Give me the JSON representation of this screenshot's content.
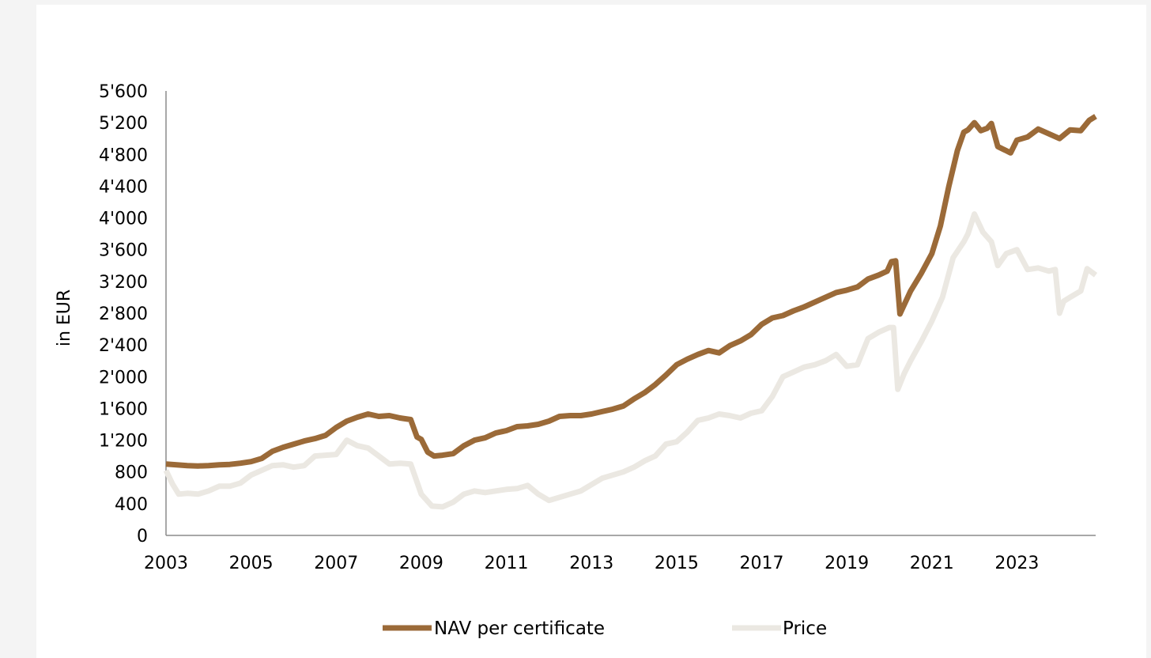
{
  "chart_data": {
    "type": "line",
    "title": "",
    "xlabel": "",
    "ylabel": "in EUR",
    "xlim": [
      2003,
      2024.85
    ],
    "ylim": [
      0,
      5600
    ],
    "xticks": [
      2003,
      2005,
      2007,
      2009,
      2011,
      2013,
      2015,
      2017,
      2019,
      2021,
      2023
    ],
    "xtick_labels": [
      "2003",
      "2005",
      "2007",
      "2009",
      "2011",
      "2013",
      "2015",
      "2017",
      "2019",
      "2021",
      "2023"
    ],
    "yticks": [
      0,
      400,
      800,
      1200,
      1600,
      2000,
      2400,
      2800,
      3200,
      3600,
      4000,
      4400,
      4800,
      5200,
      5600
    ],
    "ytick_labels": [
      "0",
      "400",
      "800",
      "1'200",
      "1'600",
      "2'000",
      "2'400",
      "2'800",
      "3'200",
      "3'600",
      "4'000",
      "4'400",
      "4'800",
      "5'200",
      "5'600"
    ],
    "grid": false,
    "legend_position": "bottom",
    "series": [
      {
        "name": "NAV per certificate",
        "color": "#9b6a38",
        "x": [
          2003.0,
          2003.25,
          2003.5,
          2003.75,
          2004.0,
          2004.25,
          2004.5,
          2004.75,
          2005.0,
          2005.25,
          2005.5,
          2005.75,
          2006.0,
          2006.25,
          2006.5,
          2006.75,
          2007.0,
          2007.25,
          2007.5,
          2007.75,
          2008.0,
          2008.25,
          2008.5,
          2008.75,
          2008.9,
          2009.0,
          2009.15,
          2009.3,
          2009.5,
          2009.75,
          2010.0,
          2010.25,
          2010.5,
          2010.75,
          2011.0,
          2011.25,
          2011.5,
          2011.75,
          2012.0,
          2012.25,
          2012.5,
          2012.75,
          2013.0,
          2013.25,
          2013.5,
          2013.75,
          2014.0,
          2014.25,
          2014.5,
          2014.75,
          2015.0,
          2015.25,
          2015.5,
          2015.75,
          2016.0,
          2016.25,
          2016.5,
          2016.75,
          2017.0,
          2017.25,
          2017.5,
          2017.75,
          2018.0,
          2018.25,
          2018.5,
          2018.75,
          2019.0,
          2019.25,
          2019.5,
          2019.75,
          2019.95,
          2020.05,
          2020.15,
          2020.25,
          2020.5,
          2020.75,
          2021.0,
          2021.2,
          2021.4,
          2021.6,
          2021.75,
          2021.85,
          2022.0,
          2022.15,
          2022.3,
          2022.4,
          2022.55,
          2022.7,
          2022.85,
          2023.0,
          2023.25,
          2023.5,
          2023.75,
          2024.0,
          2024.25,
          2024.5,
          2024.7,
          2024.85
        ],
        "values": [
          900,
          890,
          880,
          875,
          880,
          890,
          895,
          910,
          930,
          970,
          1060,
          1110,
          1150,
          1190,
          1220,
          1260,
          1360,
          1440,
          1490,
          1530,
          1500,
          1510,
          1480,
          1460,
          1240,
          1210,
          1050,
          1000,
          1010,
          1030,
          1130,
          1200,
          1230,
          1290,
          1320,
          1370,
          1380,
          1400,
          1440,
          1500,
          1510,
          1510,
          1530,
          1560,
          1590,
          1630,
          1720,
          1800,
          1900,
          2020,
          2150,
          2220,
          2280,
          2330,
          2300,
          2390,
          2450,
          2530,
          2660,
          2740,
          2770,
          2830,
          2880,
          2940,
          3000,
          3060,
          3090,
          3130,
          3230,
          3280,
          3330,
          3450,
          3460,
          2790,
          3080,
          3300,
          3550,
          3900,
          4400,
          4850,
          5080,
          5110,
          5200,
          5100,
          5130,
          5190,
          4900,
          4860,
          4820,
          4980,
          5020,
          5120,
          5060,
          5000,
          5110,
          5100,
          5230,
          5280
        ]
      },
      {
        "name": "Price",
        "color": "#ebe8e2",
        "x": [
          2003.0,
          2003.15,
          2003.3,
          2003.5,
          2003.75,
          2004.0,
          2004.25,
          2004.5,
          2004.75,
          2005.0,
          2005.25,
          2005.5,
          2005.75,
          2006.0,
          2006.25,
          2006.5,
          2006.75,
          2007.0,
          2007.25,
          2007.5,
          2007.75,
          2008.0,
          2008.25,
          2008.5,
          2008.75,
          2009.0,
          2009.25,
          2009.5,
          2009.75,
          2010.0,
          2010.25,
          2010.5,
          2010.75,
          2011.0,
          2011.25,
          2011.5,
          2011.75,
          2012.0,
          2012.25,
          2012.5,
          2012.75,
          2013.0,
          2013.25,
          2013.5,
          2013.75,
          2014.0,
          2014.25,
          2014.5,
          2014.75,
          2015.0,
          2015.25,
          2015.5,
          2015.75,
          2016.0,
          2016.25,
          2016.5,
          2016.75,
          2017.0,
          2017.25,
          2017.5,
          2017.75,
          2018.0,
          2018.25,
          2018.5,
          2018.75,
          2019.0,
          2019.25,
          2019.5,
          2019.75,
          2020.0,
          2020.1,
          2020.2,
          2020.35,
          2020.5,
          2020.75,
          2021.0,
          2021.25,
          2021.5,
          2021.75,
          2021.85,
          2022.0,
          2022.2,
          2022.4,
          2022.55,
          2022.75,
          2023.0,
          2023.25,
          2023.5,
          2023.75,
          2023.9,
          2024.0,
          2024.1,
          2024.25,
          2024.5,
          2024.65,
          2024.85
        ],
        "values": [
          820,
          650,
          520,
          530,
          520,
          560,
          620,
          620,
          660,
          760,
          820,
          880,
          890,
          860,
          880,
          1000,
          1010,
          1020,
          1200,
          1130,
          1100,
          1000,
          900,
          910,
          900,
          520,
          370,
          360,
          420,
          520,
          560,
          540,
          560,
          580,
          590,
          630,
          520,
          440,
          480,
          520,
          560,
          640,
          720,
          760,
          800,
          860,
          940,
          1000,
          1150,
          1180,
          1300,
          1450,
          1480,
          1530,
          1510,
          1480,
          1540,
          1570,
          1750,
          2000,
          2060,
          2120,
          2150,
          2200,
          2280,
          2130,
          2150,
          2480,
          2560,
          2620,
          2620,
          1840,
          2040,
          2200,
          2440,
          2700,
          3000,
          3500,
          3700,
          3800,
          4050,
          3820,
          3700,
          3400,
          3550,
          3600,
          3350,
          3370,
          3330,
          3350,
          2800,
          2950,
          3000,
          3080,
          3360,
          3280
        ]
      }
    ]
  }
}
